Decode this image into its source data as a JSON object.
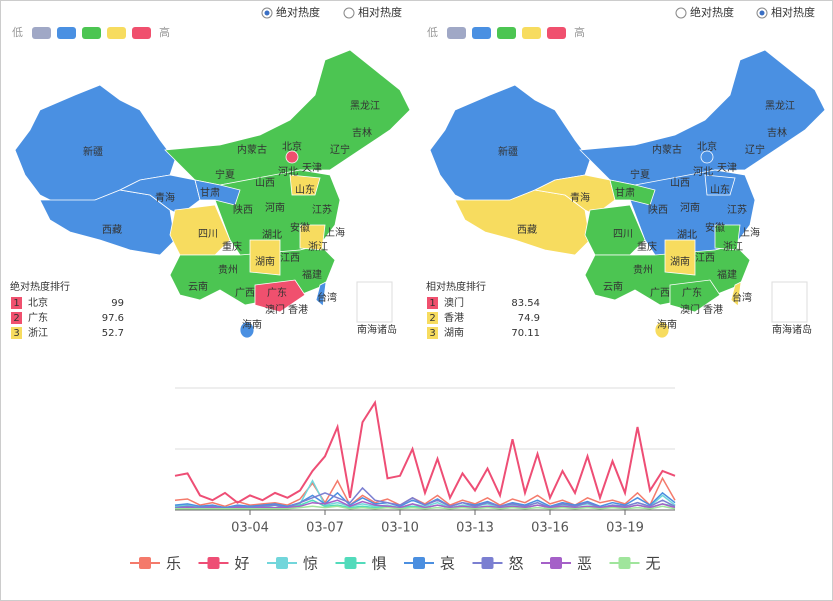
{
  "radio_options": [
    "绝对热度",
    "相对热度"
  ],
  "legend": {
    "low": "低",
    "high": "高",
    "colors": [
      "#a0a8c6",
      "#4a90e2",
      "#4cc552",
      "#f7dc5f",
      "#f0506e"
    ]
  },
  "map_labels": [
    "黑龙江",
    "吉林",
    "辽宁",
    "内蒙古",
    "北京",
    "天津",
    "河北",
    "山西",
    "山东",
    "宁夏",
    "甘肃",
    "新疆",
    "青海",
    "西藏",
    "陕西",
    "河南",
    "江苏",
    "安徽",
    "上海",
    "四川",
    "湖北",
    "重庆",
    "浙江",
    "贵州",
    "湖南",
    "江西",
    "云南",
    "广西",
    "广东",
    "福建",
    "台湾",
    "澳门",
    "香港",
    "海南",
    "南海诸岛"
  ],
  "maps": [
    {
      "selected": 0,
      "ranking_title": "绝对热度排行",
      "ranking": [
        {
          "rank": 1,
          "name": "北京",
          "value": 99,
          "color": "#f0506e"
        },
        {
          "rank": 2,
          "name": "广东",
          "value": 97.6,
          "color": "#f0506e"
        },
        {
          "rank": 3,
          "name": "浙江",
          "value": 52.7,
          "color": "#f7dc5f"
        }
      ]
    },
    {
      "selected": 1,
      "ranking_title": "相对热度排行",
      "ranking": [
        {
          "rank": 1,
          "name": "澳门",
          "value": 83.54,
          "color": "#f0506e"
        },
        {
          "rank": 2,
          "name": "香港",
          "value": 74.9,
          "color": "#f7dc5f"
        },
        {
          "rank": 3,
          "name": "湖南",
          "value": 70.11,
          "color": "#f7dc5f"
        }
      ]
    }
  ],
  "chart_data": {
    "type": "line",
    "categories": [
      null,
      null,
      null,
      null,
      null,
      null,
      "03-04",
      null,
      null,
      null,
      null,
      null,
      "03-07",
      null,
      null,
      null,
      null,
      null,
      "03-10",
      null,
      null,
      null,
      null,
      null,
      "03-13",
      null,
      null,
      null,
      null,
      null,
      "03-16",
      null,
      null,
      null,
      null,
      null,
      "03-19",
      null,
      null,
      null,
      null
    ],
    "ylim": [
      0,
      100
    ],
    "gridlines": [
      0,
      50,
      100
    ],
    "series": [
      {
        "name": "乐",
        "color": "#f47a6b",
        "values": [
          8,
          9,
          4,
          6,
          3,
          7,
          4,
          5,
          6,
          4,
          9,
          22,
          6,
          24,
          4,
          12,
          6,
          9,
          4,
          10,
          5,
          12,
          4,
          8,
          5,
          10,
          4,
          9,
          6,
          12,
          5,
          8,
          4,
          10,
          6,
          8,
          5,
          14,
          4,
          26,
          8
        ]
      },
      {
        "name": "好",
        "color": "#ee4e75",
        "values": [
          28,
          30,
          12,
          8,
          14,
          6,
          12,
          8,
          14,
          10,
          16,
          32,
          44,
          68,
          10,
          72,
          88,
          26,
          28,
          50,
          14,
          42,
          10,
          30,
          16,
          34,
          12,
          58,
          14,
          46,
          10,
          32,
          14,
          44,
          10,
          40,
          14,
          68,
          16,
          32,
          28
        ]
      },
      {
        "name": "惊",
        "color": "#72d6db",
        "values": [
          3,
          4,
          2,
          3,
          2,
          3,
          2,
          3,
          4,
          3,
          5,
          24,
          4,
          6,
          3,
          5,
          3,
          4,
          2,
          5,
          3,
          6,
          2,
          4,
          3,
          5,
          2,
          4,
          3,
          6,
          2,
          4,
          3,
          5,
          2,
          4,
          3,
          6,
          3,
          12,
          4
        ]
      },
      {
        "name": "惧",
        "color": "#52dbbb",
        "values": [
          2,
          3,
          2,
          2,
          1,
          2,
          2,
          3,
          2,
          3,
          4,
          8,
          3,
          4,
          2,
          3,
          2,
          3,
          2,
          3,
          2,
          4,
          2,
          3,
          2,
          3,
          2,
          3,
          2,
          4,
          2,
          3,
          2,
          3,
          2,
          3,
          2,
          4,
          2,
          5,
          3
        ]
      },
      {
        "name": "哀",
        "color": "#4b8fe0",
        "values": [
          4,
          5,
          3,
          4,
          2,
          4,
          3,
          4,
          5,
          3,
          6,
          12,
          5,
          14,
          4,
          10,
          5,
          6,
          3,
          8,
          4,
          9,
          3,
          6,
          4,
          7,
          3,
          6,
          4,
          8,
          3,
          6,
          4,
          7,
          3,
          6,
          4,
          10,
          4,
          14,
          6
        ]
      },
      {
        "name": "怒",
        "color": "#7b7fd1",
        "values": [
          2,
          3,
          2,
          3,
          1,
          3,
          2,
          3,
          4,
          2,
          6,
          10,
          14,
          10,
          6,
          18,
          8,
          6,
          4,
          10,
          4,
          8,
          3,
          6,
          3,
          6,
          3,
          5,
          3,
          6,
          2,
          5,
          3,
          6,
          2,
          4,
          3,
          6,
          3,
          8,
          3
        ]
      },
      {
        "name": "恶",
        "color": "#a560c8",
        "values": [
          1,
          2,
          1,
          2,
          1,
          2,
          1,
          2,
          2,
          2,
          3,
          6,
          5,
          8,
          3,
          7,
          4,
          3,
          2,
          5,
          2,
          4,
          2,
          3,
          2,
          3,
          2,
          3,
          2,
          4,
          2,
          3,
          2,
          3,
          2,
          3,
          2,
          4,
          2,
          5,
          2
        ]
      },
      {
        "name": "无",
        "color": "#a0e59c",
        "values": [
          1,
          1,
          1,
          1,
          1,
          1,
          1,
          1,
          1,
          1,
          2,
          3,
          2,
          3,
          1,
          2,
          1,
          2,
          1,
          2,
          1,
          2,
          1,
          2,
          1,
          2,
          1,
          2,
          1,
          2,
          1,
          2,
          1,
          2,
          1,
          2,
          1,
          2,
          1,
          3,
          1
        ]
      }
    ]
  }
}
